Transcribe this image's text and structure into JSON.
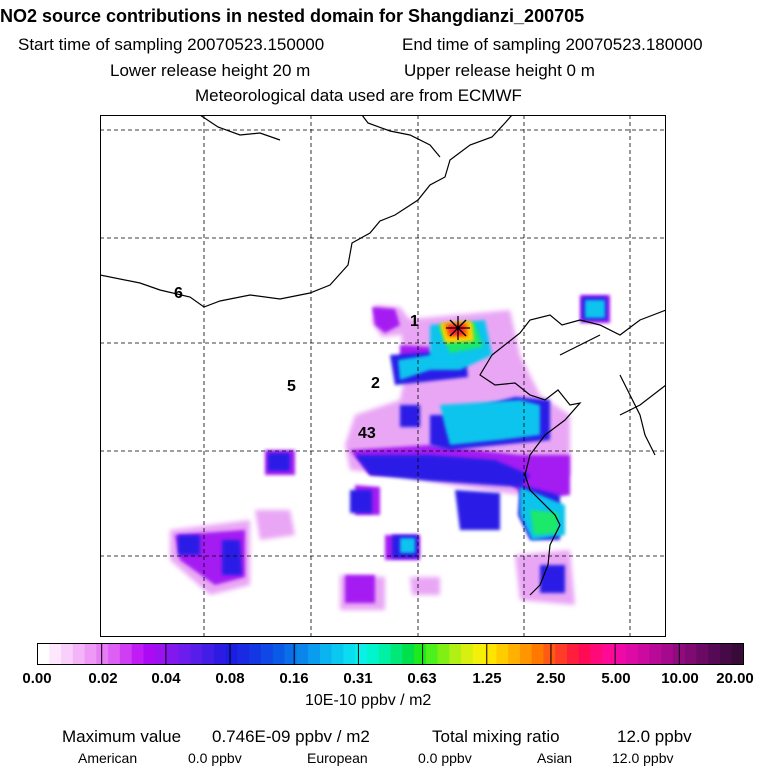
{
  "header": {
    "title": "NO2 source contributions in nested domain for Shangdianzi_200705",
    "start_label": "Start time of sampling 20070523.150000",
    "end_label": "End time of sampling 20070523.180000",
    "lower_release": "Lower release height   20 m",
    "upper_release": "Upper release height    0 m",
    "met_data": "Meteorological data used are from ECMWF"
  },
  "map": {
    "region_labels": [
      "6",
      "1",
      "5",
      "2",
      "43"
    ],
    "colors": {
      "coast": "#000000",
      "grid": "#000000"
    }
  },
  "colorbar": {
    "ticks": [
      "0.00",
      "0.02",
      "0.04",
      "0.08",
      "0.16",
      "0.31",
      "0.63",
      "1.25",
      "2.50",
      "5.00",
      "10.00",
      "20.00"
    ],
    "colors": [
      "#ffffff",
      "#fde8fd",
      "#f9d0fb",
      "#f3b5f8",
      "#ee99f5",
      "#e67df4",
      "#dd5ff3",
      "#d03ef3",
      "#c01cf5",
      "#ac0af5",
      "#9a12f0",
      "#8218ee",
      "#6c1cec",
      "#571de9",
      "#421de6",
      "#2d1be3",
      "#1b1ee1",
      "#1a2ae3",
      "#1437e4",
      "#0f48e6",
      "#0a5ae8",
      "#0a6ee8",
      "#0a86ea",
      "#0a9cee",
      "#0ab4f0",
      "#0ac8f0",
      "#0addf0",
      "#0af0e8",
      "#00f5cc",
      "#00f0a5",
      "#00e878",
      "#00e04a",
      "#1ee81e",
      "#4cf01a",
      "#80f014",
      "#b0f014",
      "#d8f010",
      "#f5f00a",
      "#ffe400",
      "#ffcc00",
      "#ffb000",
      "#ff9600",
      "#ff7800",
      "#ff5a14",
      "#ff3c28",
      "#ff1e3c",
      "#ff0a55",
      "#ff0a78",
      "#ff0a96",
      "#f00aa5",
      "#de0aa5",
      "#cc0aa0",
      "#b80a96",
      "#a50a8c",
      "#920a80",
      "#7e0a72",
      "#6a0a64",
      "#560a56",
      "#460a46",
      "#380a38"
    ],
    "unit": "10E-10 ppbv / m2"
  },
  "footer": {
    "max_label": "Maximum value",
    "max_value": "0.746E-09 ppbv / m2",
    "total_label": "Total mixing ratio",
    "total_value": "12.0 ppbv",
    "american_label": "American",
    "american_value": "0.0 ppbv",
    "european_label": "European",
    "european_value": "0.0 ppbv",
    "asian_label": "Asian",
    "asian_value": "12.0 ppbv"
  }
}
